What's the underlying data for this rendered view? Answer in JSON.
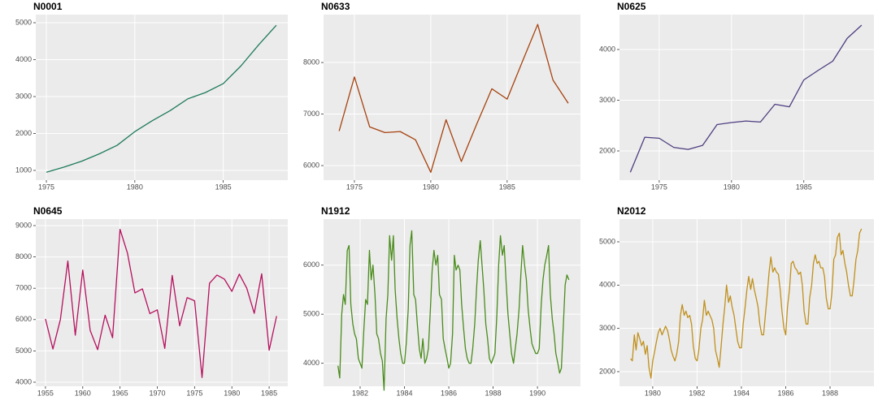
{
  "chart_data": [
    {
      "type": "line",
      "title": "N0001",
      "color": "#1e7a5a",
      "grid": true,
      "x": [
        1975,
        1976,
        1977,
        1978,
        1979,
        1980,
        1981,
        1982,
        1983,
        1984,
        1985,
        1986,
        1987,
        1988
      ],
      "values": [
        950,
        1090,
        1250,
        1450,
        1680,
        2050,
        2350,
        2620,
        2940,
        3110,
        3350,
        3830,
        4400,
        4930
      ],
      "xlim": [
        1974.4,
        1988.65
      ],
      "ylim": [
        736,
        5220
      ],
      "xticks": [
        1975,
        1980,
        1985
      ],
      "yticks": [
        1000,
        2000,
        3000,
        4000,
        5000
      ]
    },
    {
      "type": "line",
      "title": "N0633",
      "color": "#a6420f",
      "grid": true,
      "x": [
        1974,
        1975,
        1976,
        1977,
        1978,
        1979,
        1980,
        1981,
        1982,
        1983,
        1984,
        1985,
        1986,
        1987,
        1988,
        1989
      ],
      "values": [
        6670,
        7720,
        6750,
        6640,
        6660,
        6500,
        5870,
        6890,
        6080,
        6800,
        7490,
        7290,
        8020,
        8740,
        7660,
        7210
      ],
      "xlim": [
        1972.98,
        1989.8
      ],
      "ylim": [
        5717,
        8930
      ],
      "xticks": [
        1975,
        1980,
        1985
      ],
      "yticks": [
        6000,
        7000,
        8000
      ]
    },
    {
      "type": "line",
      "title": "N0625",
      "color": "#4e3d80",
      "grid": true,
      "x": [
        1973,
        1974,
        1975,
        1976,
        1977,
        1978,
        1979,
        1980,
        1981,
        1982,
        1983,
        1984,
        1985,
        1986,
        1987,
        1988,
        1989
      ],
      "values": [
        1580,
        2270,
        2250,
        2070,
        2030,
        2110,
        2520,
        2560,
        2590,
        2570,
        2920,
        2870,
        3400,
        3590,
        3770,
        4220,
        4480
      ],
      "xlim": [
        1972.25,
        1989.85
      ],
      "ylim": [
        1424,
        4688
      ],
      "xticks": [
        1975,
        1980,
        1985
      ],
      "yticks": [
        2000,
        3000,
        4000
      ]
    },
    {
      "type": "line",
      "title": "N0645",
      "color": "#b5115e",
      "grid": true,
      "x": [
        1955,
        1956,
        1957,
        1958,
        1959,
        1960,
        1961,
        1962,
        1963,
        1964,
        1965,
        1966,
        1967,
        1968,
        1969,
        1970,
        1971,
        1972,
        1973,
        1974,
        1975,
        1976,
        1977,
        1978,
        1979,
        1980,
        1981,
        1982,
        1983,
        1984,
        1985,
        1986
      ],
      "values": [
        6020,
        5060,
        6000,
        7870,
        5500,
        7580,
        5650,
        5040,
        6140,
        5420,
        8880,
        8120,
        6850,
        6980,
        6190,
        6310,
        5080,
        7410,
        5800,
        6700,
        6600,
        4150,
        7160,
        7420,
        7290,
        6900,
        7450,
        7000,
        6200,
        7460,
        5020,
        6110
      ],
      "xlim": [
        1953.7,
        1987.5
      ],
      "ylim": [
        3870,
        9207
      ],
      "xticks": [
        1955,
        1960,
        1965,
        1970,
        1975,
        1980,
        1985
      ],
      "yticks": [
        4000,
        5000,
        6000,
        7000,
        8000,
        9000
      ]
    },
    {
      "type": "line",
      "title": "N1912",
      "color": "#4a8c1c",
      "grid": true,
      "x": [
        1981,
        1981.08,
        1981.17,
        1981.25,
        1981.33,
        1981.42,
        1981.5,
        1981.58,
        1981.67,
        1981.75,
        1981.83,
        1981.92,
        1982,
        1982.08,
        1982.17,
        1982.25,
        1982.33,
        1982.42,
        1982.5,
        1982.58,
        1982.67,
        1982.75,
        1982.83,
        1982.92,
        1983,
        1983.08,
        1983.17,
        1983.25,
        1983.33,
        1983.42,
        1983.5,
        1983.58,
        1983.67,
        1983.75,
        1983.83,
        1983.92,
        1984,
        1984.08,
        1984.17,
        1984.25,
        1984.33,
        1984.42,
        1984.5,
        1984.58,
        1984.67,
        1984.75,
        1984.83,
        1984.92,
        1985,
        1985.08,
        1985.17,
        1985.25,
        1985.33,
        1985.42,
        1985.5,
        1985.58,
        1985.67,
        1985.75,
        1985.83,
        1985.92,
        1986,
        1986.08,
        1986.17,
        1986.25,
        1986.33,
        1986.42,
        1986.5,
        1986.58,
        1986.67,
        1986.75,
        1986.83,
        1986.92,
        1987,
        1987.08,
        1987.17,
        1987.25,
        1987.33,
        1987.42,
        1987.5,
        1987.58,
        1987.67,
        1987.75,
        1987.83,
        1987.92,
        1988,
        1988.08,
        1988.17,
        1988.25,
        1988.33,
        1988.42,
        1988.5,
        1988.58,
        1988.67,
        1988.75,
        1988.83,
        1988.92,
        1989,
        1989.08,
        1989.17,
        1989.25,
        1989.33,
        1989.42,
        1989.5,
        1989.58,
        1989.67,
        1989.75,
        1989.83,
        1989.92,
        1990,
        1990.08,
        1990.17,
        1990.25,
        1990.33,
        1990.42,
        1990.5,
        1990.58,
        1990.67,
        1990.75,
        1990.83,
        1990.92,
        1991,
        1991.08,
        1991.17,
        1991.25,
        1991.33,
        1991.42
      ],
      "values": [
        3950,
        3700,
        5000,
        5400,
        5200,
        6300,
        6400,
        5200,
        4800,
        4600,
        4500,
        4100,
        4000,
        3900,
        4700,
        5300,
        5200,
        6300,
        5700,
        6000,
        5400,
        4600,
        4500,
        4200,
        4050,
        3450,
        4900,
        5400,
        6600,
        6100,
        6600,
        5500,
        4900,
        4500,
        4200,
        4000,
        4000,
        4400,
        5100,
        6400,
        6700,
        5400,
        5300,
        4800,
        4300,
        4100,
        4500,
        4000,
        4100,
        4300,
        5100,
        5900,
        6300,
        6000,
        6200,
        5400,
        5300,
        4500,
        4300,
        4100,
        3900,
        4000,
        4600,
        6200,
        5900,
        6000,
        5900,
        5200,
        4700,
        4300,
        4100,
        4000,
        4000,
        4300,
        4800,
        5500,
        6100,
        6500,
        6000,
        5500,
        4800,
        4500,
        4100,
        4000,
        4100,
        4200,
        5000,
        6000,
        6600,
        6200,
        6400,
        5700,
        5000,
        4600,
        4200,
        4000,
        4300,
        4600,
        5100,
        5800,
        6400,
        6000,
        5700,
        5100,
        4700,
        4400,
        4300,
        4200,
        4200,
        4300,
        5200,
        5700,
        6000,
        6200,
        6400,
        5400,
        4900,
        4600,
        4200,
        4000,
        3800,
        3900,
        4800,
        5600,
        5800,
        5700
      ],
      "xlim": [
        1980.35,
        1991.94
      ],
      "ylim": [
        3531,
        6938
      ],
      "xticks": [
        1982,
        1984,
        1986,
        1988,
        1990
      ],
      "yticks": [
        4000,
        5000,
        6000
      ]
    },
    {
      "type": "line",
      "title": "N2012",
      "color": "#c0901e",
      "grid": true,
      "x": [
        1979,
        1979.08,
        1979.17,
        1979.25,
        1979.33,
        1979.42,
        1979.5,
        1979.58,
        1979.67,
        1979.75,
        1979.83,
        1979.92,
        1980,
        1980.08,
        1980.17,
        1980.25,
        1980.33,
        1980.42,
        1980.5,
        1980.58,
        1980.67,
        1980.75,
        1980.83,
        1980.92,
        1981,
        1981.08,
        1981.17,
        1981.25,
        1981.33,
        1981.42,
        1981.5,
        1981.58,
        1981.67,
        1981.75,
        1981.83,
        1981.92,
        1982,
        1982.08,
        1982.17,
        1982.25,
        1982.33,
        1982.42,
        1982.5,
        1982.58,
        1982.67,
        1982.75,
        1982.83,
        1982.92,
        1983,
        1983.08,
        1983.17,
        1983.25,
        1983.33,
        1983.42,
        1983.5,
        1983.58,
        1983.67,
        1983.75,
        1983.83,
        1983.92,
        1984,
        1984.08,
        1984.17,
        1984.25,
        1984.33,
        1984.42,
        1984.5,
        1984.58,
        1984.67,
        1984.75,
        1984.83,
        1984.92,
        1985,
        1985.08,
        1985.17,
        1985.25,
        1985.33,
        1985.42,
        1985.5,
        1985.58,
        1985.67,
        1985.75,
        1985.83,
        1985.92,
        1986,
        1986.08,
        1986.17,
        1986.25,
        1986.33,
        1986.42,
        1986.5,
        1986.58,
        1986.67,
        1986.75,
        1986.83,
        1986.92,
        1987,
        1987.08,
        1987.17,
        1987.25,
        1987.33,
        1987.42,
        1987.5,
        1987.58,
        1987.67,
        1987.75,
        1987.83,
        1987.92,
        1988,
        1988.08,
        1988.17,
        1988.25,
        1988.33,
        1988.42,
        1988.5,
        1988.58,
        1988.67,
        1988.75,
        1988.83,
        1988.92,
        1989,
        1989.08,
        1989.17,
        1989.25,
        1989.33,
        1989.42
      ],
      "values": [
        2300,
        2250,
        2850,
        2500,
        2900,
        2750,
        2600,
        2700,
        2400,
        2600,
        2100,
        1850,
        2250,
        2450,
        2700,
        2900,
        3000,
        2850,
        2950,
        3050,
        2950,
        2750,
        2500,
        2350,
        2250,
        2400,
        2700,
        3300,
        3550,
        3300,
        3400,
        3250,
        3300,
        3100,
        2600,
        2300,
        2250,
        2500,
        3000,
        3200,
        3650,
        3300,
        3400,
        3300,
        3200,
        3000,
        2500,
        2300,
        2100,
        2550,
        3100,
        3500,
        4000,
        3600,
        3750,
        3500,
        3300,
        3000,
        2700,
        2550,
        2550,
        3100,
        3500,
        3900,
        4200,
        3900,
        4150,
        3900,
        3700,
        3500,
        3100,
        2850,
        2850,
        3300,
        3800,
        4300,
        4650,
        4300,
        4400,
        4300,
        4250,
        3900,
        3400,
        3000,
        2850,
        3500,
        3900,
        4500,
        4550,
        4400,
        4350,
        4250,
        4300,
        4000,
        3400,
        3100,
        3100,
        3700,
        4000,
        4500,
        4700,
        4500,
        4550,
        4400,
        4400,
        4200,
        3700,
        3450,
        3450,
        3800,
        4600,
        4700,
        5100,
        5200,
        4700,
        4800,
        4500,
        4300,
        4000,
        3750,
        3750,
        4100,
        4600,
        4800,
        5200,
        5300
      ],
      "xlim": [
        1978.5,
        1989.98
      ],
      "ylim": [
        1662,
        5525
      ],
      "xticks": [
        1980,
        1982,
        1984,
        1986,
        1988
      ],
      "yticks": [
        2000,
        3000,
        4000,
        5000
      ]
    }
  ]
}
